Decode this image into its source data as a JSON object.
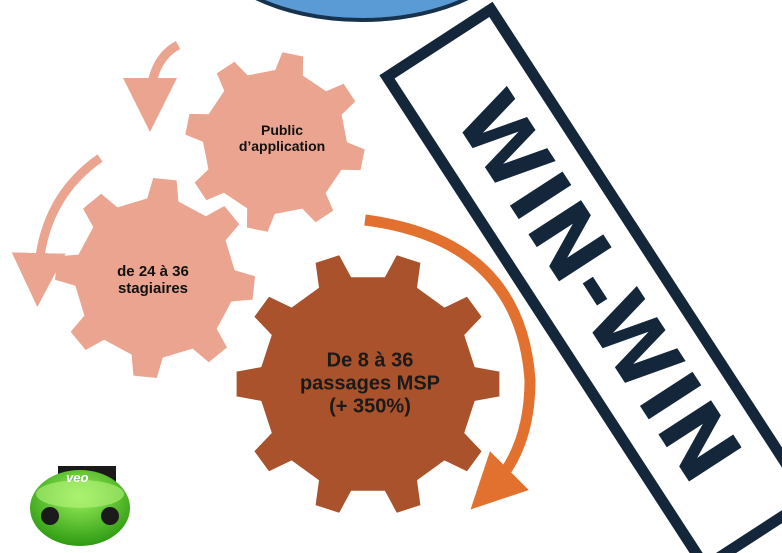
{
  "gears": [
    {
      "label": "Public d’application"
    },
    {
      "label": "de 24 à 36 stagiaires"
    },
    {
      "label": "De 8 à 36 passages MSP (+ 350%)"
    }
  ],
  "stamp": "WIN-WIN",
  "logo": "veo"
}
